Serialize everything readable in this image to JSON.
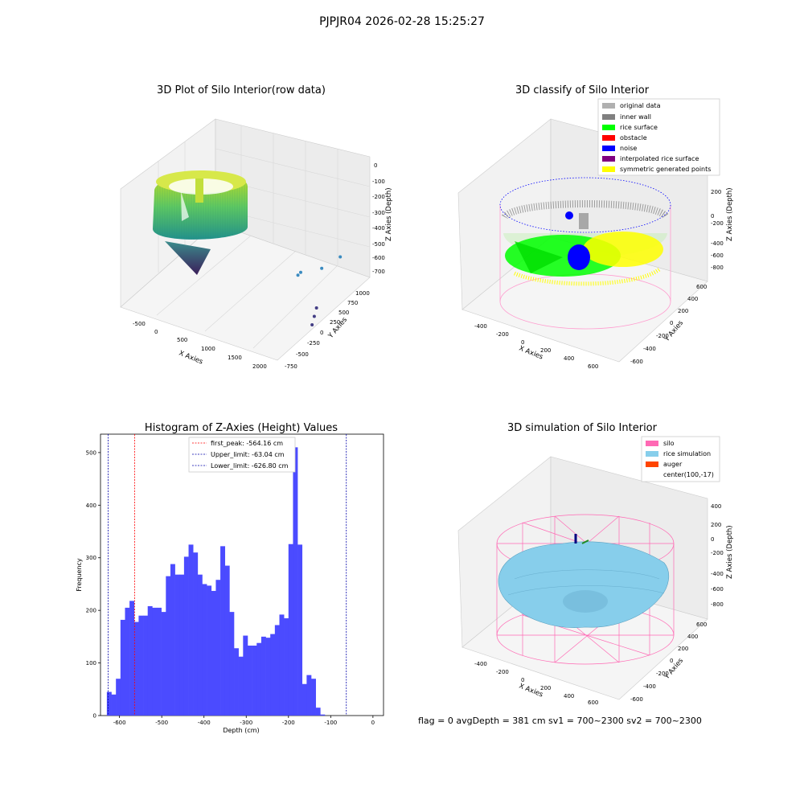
{
  "figure": {
    "suptitle": "PJPJR04 2026-02-28 15:25:27",
    "footer": "flag = 0     avgDepth = 381 cm  sv1 = 700~2300  sv2 = 700~2300"
  },
  "colors": {
    "silo": "#ff69b4",
    "rice": "#87ceeb",
    "auger": "#ff4500",
    "inner_wall": "#808080",
    "original": "#b0b0b0",
    "rice_surface": "#00ff00",
    "obstacle": "#ff0000",
    "noise": "#0000ff",
    "interp": "#800080",
    "sym": "#ffff00",
    "hist_bar": "#4b4bff"
  },
  "chart_data": [
    {
      "type": "scatter",
      "title": "3D Plot of Silo Interior(row data)",
      "xlabel": "X Axies",
      "ylabel": "Y Axies",
      "zlabel": "Z Axies (Depth)",
      "x_ticks": [
        "-500",
        "0",
        "500",
        "1000",
        "1500",
        "2000"
      ],
      "y_ticks": [
        "-750",
        "-500",
        "-250",
        "0",
        "250",
        "500",
        "750",
        "1000"
      ],
      "z_ticks": [
        "0",
        "-100",
        "-200",
        "-300",
        "-400",
        "-500",
        "-600",
        "-700"
      ],
      "outliers": [
        {
          "x": 1500,
          "y": 250,
          "z": -430
        },
        {
          "x": 1400,
          "y": 300,
          "z": -480
        },
        {
          "x": 1700,
          "y": 500,
          "z": -450
        },
        {
          "x": 1850,
          "y": 750,
          "z": -420
        },
        {
          "x": 1950,
          "y": 100,
          "z": -600
        },
        {
          "x": 1950,
          "y": 50,
          "z": -650
        },
        {
          "x": 1950,
          "y": 0,
          "z": -700
        }
      ]
    },
    {
      "type": "scatter",
      "title": "3D classify of Silo Interior",
      "xlabel": "X Axies",
      "ylabel": "Y Axies",
      "zlabel": "Z Axies (Depth)",
      "x_ticks": [
        "-400",
        "-200",
        "0",
        "200",
        "400",
        "600"
      ],
      "y_ticks": [
        "-600",
        "-400",
        "-200",
        "0",
        "200",
        "400",
        "600"
      ],
      "z_ticks": [
        "200",
        "0",
        "-200",
        "-400",
        "-600",
        "-800"
      ],
      "legend": [
        "original data",
        "inner wall",
        "rice surface",
        "obstacle",
        "noise",
        "interpolated rice surface",
        "symmetric generated points"
      ],
      "legend_loc": "upper-right"
    },
    {
      "type": "bar",
      "title": "Histogram of Z-Axies (Height) Values",
      "xlabel": "Depth (cm)",
      "ylabel": "Frequency",
      "xlim": [
        -645,
        25
      ],
      "ylim": [
        0,
        535
      ],
      "x_ticks": [
        -600,
        -500,
        -400,
        -300,
        -200,
        -100,
        0
      ],
      "y_ticks": [
        0,
        100,
        200,
        300,
        400,
        500
      ],
      "bin_start": -630,
      "bin_width": 10.75,
      "values": [
        45,
        40,
        70,
        182,
        205,
        218,
        178,
        190,
        190,
        208,
        205,
        205,
        197,
        265,
        288,
        268,
        268,
        302,
        325,
        310,
        268,
        250,
        247,
        237,
        258,
        322,
        285,
        197,
        128,
        112,
        152,
        133,
        133,
        138,
        150,
        148,
        155,
        172,
        192,
        185,
        326,
        510,
        325,
        60,
        77,
        70,
        15,
        2
      ],
      "lines": [
        {
          "label": "first_peak: -564.16 cm",
          "value": -564.16,
          "color": "#ff0000"
        },
        {
          "label": "Upper_limit: -63.04 cm",
          "value": -63.04,
          "color": "#0000aa"
        },
        {
          "label": "Lower_limit: -626.80 cm",
          "value": -626.8,
          "color": "#0000aa"
        }
      ],
      "legend_loc": "upper-center"
    },
    {
      "type": "area",
      "title": "3D simulation of Silo Interior",
      "xlabel": "X Axies",
      "ylabel": "Y Axies",
      "zlabel": "Z Axies (Depth)",
      "x_ticks": [
        "-400",
        "-200",
        "0",
        "200",
        "400",
        "600"
      ],
      "y_ticks": [
        "-600",
        "-400",
        "-200",
        "0",
        "200",
        "400",
        "600"
      ],
      "z_ticks": [
        "400",
        "200",
        "0",
        "-200",
        "-400",
        "-600",
        "-800"
      ],
      "legend": [
        "silo",
        "rice simulation",
        "auger",
        "center(100,-17)"
      ],
      "legend_loc": "upper-right"
    }
  ]
}
